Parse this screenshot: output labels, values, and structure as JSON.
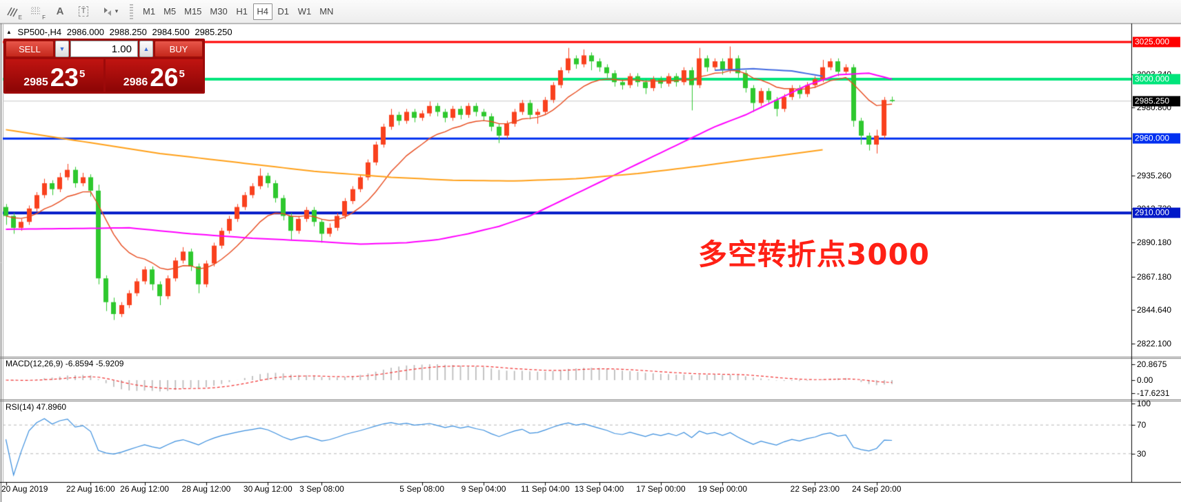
{
  "toolbar": {
    "tools": [
      {
        "id": "indicators",
        "sub": "E"
      },
      {
        "id": "grid",
        "sub": "F"
      },
      {
        "id": "label",
        "label": "A"
      },
      {
        "id": "textbox",
        "label": "T"
      },
      {
        "id": "objects",
        "caret": "▾"
      }
    ],
    "timeframes": [
      "M1",
      "M5",
      "M15",
      "M30",
      "H1",
      "H4",
      "D1",
      "W1",
      "MN"
    ],
    "active_timeframe": "H4"
  },
  "chart_header": {
    "arrow": "▲",
    "symbol": "SP500-,H4",
    "open": "2986.000",
    "high": "2988.250",
    "low": "2984.500",
    "close": "2985.250"
  },
  "trade_panel": {
    "sell_label": "SELL",
    "buy_label": "BUY",
    "volume": "1.00",
    "down_arrow": "▼",
    "up_arrow": "▲",
    "sell": {
      "prefix": "2985",
      "big": "23",
      "sup": "5"
    },
    "buy": {
      "prefix": "2986",
      "big": "26",
      "sup": "5"
    }
  },
  "chart_data": {
    "type": "candlestick",
    "symbol": "SP500-",
    "timeframe": "H4",
    "up_color": "#f9411e",
    "down_color": "#2ec82e",
    "y_range": [
      2810,
      3037
    ],
    "candles": [
      [
        2914,
        2916,
        2902,
        2908
      ],
      [
        2908,
        2910,
        2896,
        2900
      ],
      [
        2900,
        2906,
        2898,
        2904
      ],
      [
        2904,
        2915,
        2902,
        2913
      ],
      [
        2913,
        2924,
        2911,
        2922
      ],
      [
        2922,
        2933,
        2920,
        2930
      ],
      [
        2930,
        2932,
        2922,
        2926
      ],
      [
        2926,
        2937,
        2924,
        2934
      ],
      [
        2934,
        2943,
        2932,
        2939
      ],
      [
        2939,
        2941,
        2927,
        2930
      ],
      [
        2930,
        2937,
        2928,
        2934
      ],
      [
        2934,
        2936,
        2921,
        2925
      ],
      [
        2925,
        2929,
        2862,
        2866
      ],
      [
        2866,
        2868,
        2844,
        2850
      ],
      [
        2850,
        2853,
        2838,
        2842
      ],
      [
        2842,
        2850,
        2840,
        2848
      ],
      [
        2848,
        2858,
        2846,
        2856
      ],
      [
        2856,
        2866,
        2854,
        2864
      ],
      [
        2864,
        2874,
        2862,
        2872
      ],
      [
        2872,
        2874,
        2858,
        2862
      ],
      [
        2862,
        2864,
        2848,
        2854
      ],
      [
        2854,
        2868,
        2852,
        2866
      ],
      [
        2866,
        2880,
        2864,
        2878
      ],
      [
        2878,
        2887,
        2876,
        2884
      ],
      [
        2884,
        2886,
        2871,
        2874
      ],
      [
        2874,
        2876,
        2856,
        2862
      ],
      [
        2862,
        2878,
        2860,
        2876
      ],
      [
        2876,
        2890,
        2874,
        2888
      ],
      [
        2888,
        2900,
        2886,
        2898
      ],
      [
        2898,
        2908,
        2896,
        2906
      ],
      [
        2906,
        2916,
        2904,
        2914
      ],
      [
        2914,
        2924,
        2912,
        2922
      ],
      [
        2922,
        2930,
        2920,
        2928
      ],
      [
        2928,
        2940,
        2926,
        2935
      ],
      [
        2935,
        2937,
        2927,
        2930
      ],
      [
        2930,
        2932,
        2917,
        2920
      ],
      [
        2920,
        2922,
        2905,
        2908
      ],
      [
        2908,
        2910,
        2892,
        2898
      ],
      [
        2898,
        2908,
        2896,
        2906
      ],
      [
        2906,
        2914,
        2904,
        2912
      ],
      [
        2912,
        2914,
        2901,
        2904
      ],
      [
        2904,
        2906,
        2890,
        2896
      ],
      [
        2896,
        2903,
        2894,
        2900
      ],
      [
        2900,
        2910,
        2898,
        2908
      ],
      [
        2908,
        2920,
        2906,
        2918
      ],
      [
        2918,
        2928,
        2916,
        2926
      ],
      [
        2926,
        2936,
        2924,
        2934
      ],
      [
        2934,
        2946,
        2932,
        2944
      ],
      [
        2944,
        2958,
        2942,
        2956
      ],
      [
        2956,
        2970,
        2954,
        2968
      ],
      [
        2968,
        2980,
        2966,
        2976
      ],
      [
        2976,
        2978,
        2969,
        2972
      ],
      [
        2972,
        2980,
        2970,
        2978
      ],
      [
        2978,
        2980,
        2971,
        2974
      ],
      [
        2974,
        2979,
        2972,
        2977
      ],
      [
        2977,
        2985,
        2975,
        2982
      ],
      [
        2982,
        2984,
        2975,
        2978
      ],
      [
        2978,
        2980,
        2971,
        2974
      ],
      [
        2974,
        2982,
        2972,
        2980
      ],
      [
        2980,
        2982,
        2973,
        2976
      ],
      [
        2976,
        2984,
        2974,
        2982
      ],
      [
        2982,
        2984,
        2975,
        2978
      ],
      [
        2978,
        2980,
        2972,
        2975
      ],
      [
        2975,
        2977,
        2965,
        2968
      ],
      [
        2968,
        2970,
        2957,
        2962
      ],
      [
        2962,
        2972,
        2960,
        2970
      ],
      [
        2970,
        2980,
        2968,
        2978
      ],
      [
        2978,
        2986,
        2976,
        2984
      ],
      [
        2984,
        2986,
        2973,
        2976
      ],
      [
        2976,
        2980,
        2970,
        2978
      ],
      [
        2978,
        2988,
        2976,
        2986
      ],
      [
        2986,
        2998,
        2984,
        2996
      ],
      [
        2996,
        3008,
        2994,
        3006
      ],
      [
        3006,
        3021,
        3004,
        3014
      ],
      [
        3014,
        3016,
        3007,
        3010
      ],
      [
        3010,
        3020,
        3008,
        3016
      ],
      [
        3016,
        3018,
        3006,
        3012
      ],
      [
        3012,
        3014,
        3005,
        3008
      ],
      [
        3008,
        3010,
        3001,
        3004
      ],
      [
        3004,
        3006,
        2995,
        2998
      ],
      [
        2998,
        3000,
        2993,
        2996
      ],
      [
        2996,
        3004,
        2994,
        3002
      ],
      [
        3002,
        3004,
        2995,
        2998
      ],
      [
        2998,
        3000,
        2990,
        2994
      ],
      [
        2994,
        3002,
        2992,
        3000
      ],
      [
        3000,
        3002,
        2994,
        2997
      ],
      [
        2997,
        3004,
        2995,
        3002
      ],
      [
        3002,
        3004,
        2995,
        2998
      ],
      [
        2998,
        3008,
        2996,
        3006
      ],
      [
        3006,
        3008,
        2979,
        2996
      ],
      [
        2996,
        3021,
        2994,
        3014
      ],
      [
        3014,
        3016,
        3005,
        3008
      ],
      [
        3008,
        3014,
        3006,
        3012
      ],
      [
        3012,
        3014,
        3003,
        3006
      ],
      [
        3006,
        3022,
        3004,
        3014
      ],
      [
        3014,
        3016,
        3001,
        3004
      ],
      [
        3004,
        3006,
        2991,
        2994
      ],
      [
        2994,
        2996,
        2978,
        2984
      ],
      [
        2984,
        2994,
        2982,
        2992
      ],
      [
        2992,
        2994,
        2983,
        2986
      ],
      [
        2986,
        2988,
        2975,
        2980
      ],
      [
        2980,
        2990,
        2978,
        2988
      ],
      [
        2988,
        2996,
        2986,
        2994
      ],
      [
        2994,
        2996,
        2987,
        2990
      ],
      [
        2990,
        2998,
        2988,
        2996
      ],
      [
        2996,
        3002,
        2994,
        3000
      ],
      [
        3000,
        3013,
        2998,
        3008
      ],
      [
        3008,
        3014,
        3006,
        3012
      ],
      [
        3012,
        3014,
        3002,
        3005
      ],
      [
        3005,
        3010,
        3003,
        3008
      ],
      [
        3008,
        3010,
        2968,
        2972
      ],
      [
        2972,
        2974,
        2956,
        2962
      ],
      [
        2962,
        2964,
        2952,
        2956
      ],
      [
        2956,
        2966,
        2950,
        2962
      ],
      [
        2962,
        2988,
        2960,
        2986
      ],
      [
        2986,
        2988.25,
        2984.5,
        2985.25
      ]
    ],
    "x_ticks": [
      {
        "label": "20 Aug 2019",
        "i": 0
      },
      {
        "label": "22 Aug 16:00",
        "i": 11
      },
      {
        "label": "26 Aug 12:00",
        "i": 18
      },
      {
        "label": "28 Aug 12:00",
        "i": 26
      },
      {
        "label": "30 Aug 12:00",
        "i": 34
      },
      {
        "label": "3 Sep 08:00",
        "i": 41
      },
      {
        "label": "5 Sep 08:00",
        "i": 54
      },
      {
        "label": "9 Sep 04:00",
        "i": 62
      },
      {
        "label": "11 Sep 04:00",
        "i": 70
      },
      {
        "label": "13 Sep 04:00",
        "i": 77
      },
      {
        "label": "17 Sep 00:00",
        "i": 85
      },
      {
        "label": "19 Sep 00:00",
        "i": 93
      },
      {
        "label": "22 Sep 23:00",
        "i": 105
      },
      {
        "label": "24 Sep 20:00",
        "i": 113
      }
    ],
    "y_ticks": [
      {
        "label": "3003.340",
        "price": 3003.34
      },
      {
        "label": "2980.800",
        "price": 2980.8
      },
      {
        "label": "2935.260",
        "price": 2935.26
      },
      {
        "label": "2912.720",
        "price": 2912.72
      },
      {
        "label": "2890.180",
        "price": 2890.18
      },
      {
        "label": "2867.180",
        "price": 2867.18
      },
      {
        "label": "2844.640",
        "price": 2844.64
      },
      {
        "label": "2822.100",
        "price": 2822.1
      }
    ],
    "price_lines": [
      {
        "price": 3025,
        "label": "3025.000",
        "color": "#ff0000",
        "width": 3
      },
      {
        "price": 3000,
        "label": "3000.000",
        "color": "#00e57b",
        "width": 4
      },
      {
        "price": 2960,
        "label": "2960.000",
        "color": "#0030f0",
        "width": 3
      },
      {
        "price": 2910,
        "label": "2910.000",
        "color": "#0018c8",
        "width": 4
      }
    ],
    "current_price": {
      "price": 2985.25,
      "label": "2985.250",
      "line_color": "#c8c8c8",
      "tag_bg": "#000000"
    },
    "ma_lines": [
      {
        "name": "fast-ma-red",
        "color": "#e84b1e",
        "type": "ema",
        "period": 12,
        "width": 1.4
      },
      {
        "name": "slow-ma-magenta",
        "color": "#ff00ff",
        "type": "points",
        "width": 2,
        "points": [
          [
            0,
            2899
          ],
          [
            8,
            2899.5
          ],
          [
            16,
            2900
          ],
          [
            24,
            2896
          ],
          [
            32,
            2893
          ],
          [
            40,
            2891
          ],
          [
            46,
            2889
          ],
          [
            52,
            2890
          ],
          [
            56,
            2892
          ],
          [
            60,
            2896
          ],
          [
            64,
            2901
          ],
          [
            68,
            2908
          ],
          [
            72,
            2918
          ],
          [
            76,
            2928
          ],
          [
            80,
            2938
          ],
          [
            84,
            2948
          ],
          [
            88,
            2958
          ],
          [
            92,
            2968
          ],
          [
            96,
            2976
          ],
          [
            100,
            2986
          ],
          [
            104,
            2996
          ],
          [
            108,
            3003
          ],
          [
            112,
            3004
          ],
          [
            115,
            3000
          ]
        ]
      },
      {
        "name": "trend-ma-orange",
        "color": "#ffa018",
        "type": "points",
        "width": 2,
        "points": [
          [
            0,
            2966
          ],
          [
            10,
            2958
          ],
          [
            20,
            2950
          ],
          [
            30,
            2944
          ],
          [
            40,
            2938
          ],
          [
            50,
            2934
          ],
          [
            58,
            2932
          ],
          [
            66,
            2931.5
          ],
          [
            74,
            2933
          ],
          [
            82,
            2936.5
          ],
          [
            90,
            2941.5
          ],
          [
            98,
            2947
          ],
          [
            106,
            2952.5
          ]
        ]
      },
      {
        "name": "ma-blue",
        "color": "#4169e1",
        "type": "points",
        "width": 2,
        "points": [
          [
            92,
            3006
          ],
          [
            97,
            3007
          ],
          [
            102,
            3005.5
          ],
          [
            106,
            3002
          ]
        ]
      }
    ],
    "indicators": {
      "macd": {
        "title": "MACD(12,26,9)",
        "values_text": "-6.8594 -5.9209",
        "fast": 12,
        "slow": 26,
        "signal": 9,
        "histogram_color": "#bdbdbd",
        "signal_color": "#f23030",
        "scale_labels": [
          {
            "text": "20.8675",
            "v": 20.8675
          },
          {
            "text": "0.00",
            "v": 0
          },
          {
            "text": "-17.6231",
            "v": -17.6231
          }
        ]
      },
      "rsi": {
        "title": "RSI(14)",
        "value_text": "47.8960",
        "period": 14,
        "color": "#3a8ede",
        "levels": [
          70,
          30
        ],
        "scale_labels": [
          {
            "text": "100",
            "v": 100
          },
          {
            "text": "70",
            "v": 70
          },
          {
            "text": "30",
            "v": 30
          }
        ]
      }
    },
    "annotation": {
      "text": "多空转折点3000",
      "color": "#ff2015"
    }
  }
}
